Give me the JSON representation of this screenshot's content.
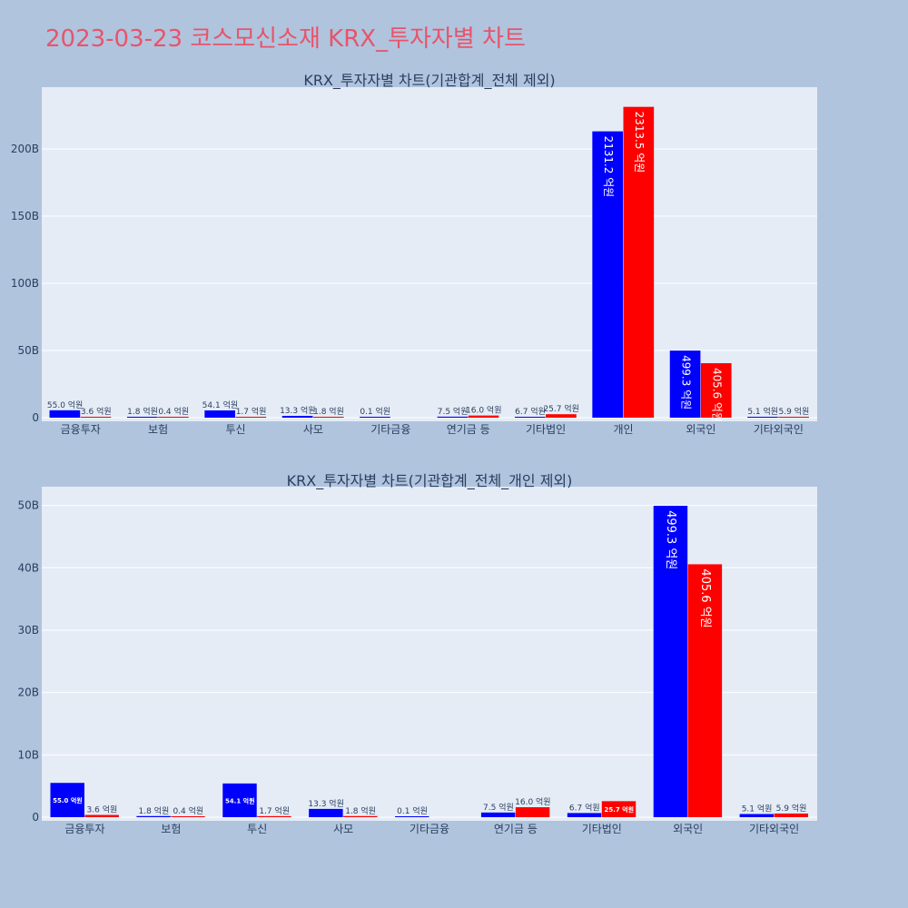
{
  "title": "2023-03-23 코스모신소재 KRX_투자자별 차트",
  "colors": {
    "title": "#e8546a",
    "series_a": "#0000ff",
    "series_b": "#ff0000",
    "plot_bg": "#e5ecf6",
    "page_bg": "#b0c4de"
  },
  "chart_data": [
    {
      "type": "bar",
      "title": "KRX_투자자별 차트(기관합계_전체 제외)",
      "categories": [
        "금융투자",
        "보험",
        "투신",
        "사모",
        "기타금융",
        "연기금 등",
        "기타법인",
        "개인",
        "외국인",
        "기타외국인"
      ],
      "series": [
        {
          "values": [
            5.5,
            0.18,
            5.41,
            1.33,
            0.01,
            0.75,
            0.67,
            213.12,
            49.93,
            0.51
          ],
          "labels": [
            "55.0 억원",
            "1.8 억원",
            "54.1 억원",
            "13.3 억원",
            "0.1 억원",
            "7.5 억원",
            "6.7 억원",
            "2131.2 억원",
            "499.3 억원",
            "5.1 억원"
          ]
        },
        {
          "values": [
            0.36,
            0.04,
            0.17,
            0.18,
            0,
            1.6,
            2.57,
            231.35,
            40.56,
            0.59
          ],
          "labels": [
            "3.6 억원",
            "0.4 억원",
            "1.7 억원",
            "1.8 억원",
            "",
            "16.0 억원",
            "25.7 억원",
            "2313.5 억원",
            "405.6 억원",
            "5.9 억원"
          ]
        }
      ],
      "yticks": [
        0,
        50,
        100,
        150,
        200
      ],
      "ytick_labels": [
        "0",
        "50B",
        "100B",
        "150B",
        "200B"
      ],
      "ylim": [
        0,
        246
      ],
      "grid": true
    },
    {
      "type": "bar",
      "title": "KRX_투자자별 차트(기관합계_전체_개인 제외)",
      "categories": [
        "금융투자",
        "보험",
        "투신",
        "사모",
        "기타금융",
        "연기금 등",
        "기타법인",
        "외국인",
        "기타외국인"
      ],
      "series": [
        {
          "values": [
            5.5,
            0.18,
            5.41,
            1.33,
            0.01,
            0.75,
            0.67,
            49.93,
            0.51
          ],
          "labels": [
            "55.0 억원",
            "1.8 억원",
            "54.1 억원",
            "13.3 억원",
            "0.1 억원",
            "7.5 억원",
            "6.7 억원",
            "499.3 억원",
            "5.1 억원"
          ]
        },
        {
          "values": [
            0.36,
            0.04,
            0.17,
            0.18,
            0,
            1.6,
            2.57,
            40.56,
            0.59
          ],
          "labels": [
            "3.6 억원",
            "0.4 억원",
            "1.7 억원",
            "1.8 억원",
            "",
            "16.0 억원",
            "25.7 억원",
            "405.6 억원",
            "5.9 억원"
          ]
        }
      ],
      "yticks": [
        0,
        10,
        20,
        30,
        40,
        50
      ],
      "ytick_labels": [
        "0",
        "10B",
        "20B",
        "30B",
        "40B",
        "50B"
      ],
      "ylim": [
        0,
        53
      ],
      "grid": true
    }
  ]
}
